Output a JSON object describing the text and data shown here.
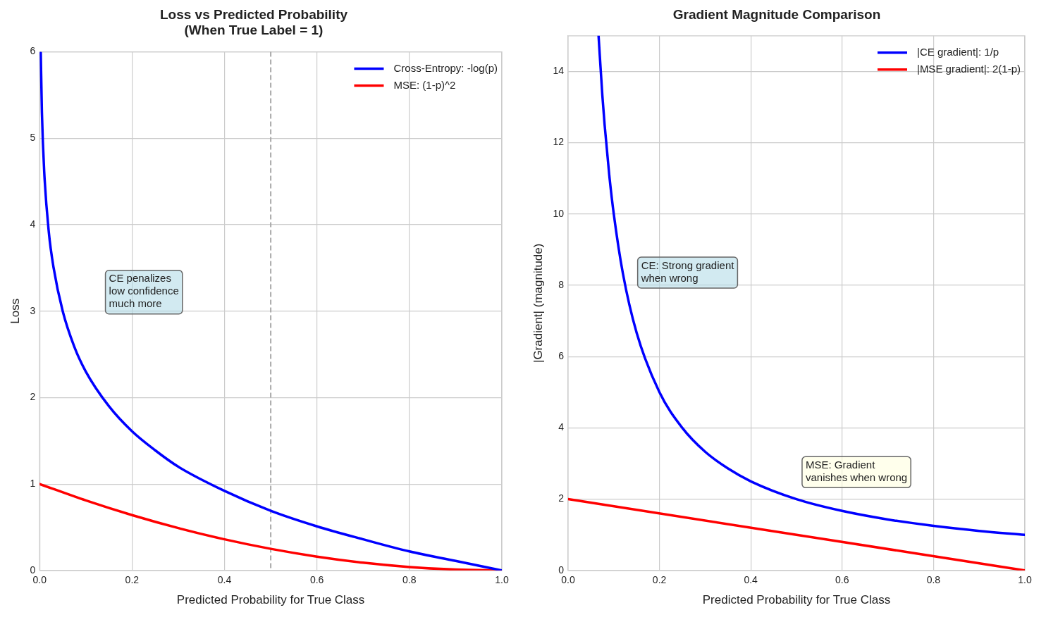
{
  "chart_data": [
    {
      "type": "line",
      "title": "Loss vs Predicted Probability\n(When True Label = 1)",
      "xlabel": "Predicted Probability for True Class",
      "ylabel": "Loss",
      "xlim": [
        0,
        1
      ],
      "xticks": [
        {
          "value": 0,
          "label": "0.0"
        },
        {
          "value": 0.2,
          "label": "0.2"
        },
        {
          "value": 0.4,
          "label": "0.4"
        },
        {
          "value": 0.6,
          "label": "0.6"
        },
        {
          "value": 0.8,
          "label": "0.8"
        },
        {
          "value": 1,
          "label": "1.0"
        }
      ],
      "ylim": [
        0,
        6
      ],
      "yticks": [
        0,
        1,
        2,
        3,
        4,
        5,
        6
      ],
      "grid": true,
      "legend": "top right",
      "marker": "none",
      "line_style": "solid",
      "series": [
        {
          "name": "Cross-Entropy: -log(p)",
          "color": "#0000ff",
          "x": [
            0.0025,
            0.005,
            0.01,
            0.02,
            0.03,
            0.05,
            0.075,
            0.1,
            0.15,
            0.2,
            0.25,
            0.3,
            0.4,
            0.5,
            0.6,
            0.7,
            0.8,
            0.9,
            1.0
          ],
          "values": [
            5.99,
            5.3,
            4.61,
            3.91,
            3.51,
            3.0,
            2.59,
            2.3,
            1.9,
            1.61,
            1.39,
            1.2,
            0.92,
            0.69,
            0.51,
            0.36,
            0.22,
            0.11,
            0
          ]
        },
        {
          "name": "MSE: (1-p)^2",
          "color": "#ff0000",
          "x": [
            0,
            0.1,
            0.2,
            0.3,
            0.4,
            0.5,
            0.6,
            0.7,
            0.8,
            0.9,
            1.0
          ],
          "values": [
            1,
            0.81,
            0.64,
            0.49,
            0.36,
            0.25,
            0.16,
            0.09,
            0.04,
            0.01,
            0
          ]
        }
      ],
      "ref_lines": [
        {
          "axis": "x",
          "value": 0.5,
          "color": "#aaaaaa",
          "line_style": "dashed"
        }
      ],
      "annotations": [
        "CE penalizes\nlow confidence\nmuch more"
      ]
    },
    {
      "type": "line",
      "title": "Gradient Magnitude Comparison",
      "xlabel": "Predicted Probability for True Class",
      "ylabel": "|Gradient| (magnitude)",
      "xlim": [
        0,
        1
      ],
      "xticks": [
        {
          "value": 0,
          "label": "0.0"
        },
        {
          "value": 0.2,
          "label": "0.2"
        },
        {
          "value": 0.4,
          "label": "0.4"
        },
        {
          "value": 0.6,
          "label": "0.6"
        },
        {
          "value": 0.8,
          "label": "0.8"
        },
        {
          "value": 1,
          "label": "1.0"
        }
      ],
      "ylim": [
        0,
        15
      ],
      "yticks": [
        0,
        2,
        4,
        6,
        8,
        10,
        12,
        14
      ],
      "grid": true,
      "legend": "top right",
      "marker": "none",
      "line_style": "solid",
      "series": [
        {
          "name": "|CE gradient|: 1/p",
          "color": "#0000ff",
          "x": [
            0.0667,
            0.075,
            0.08,
            0.09,
            0.1,
            0.12,
            0.15,
            0.2,
            0.25,
            0.3,
            0.35,
            0.4,
            0.5,
            0.6,
            0.7,
            0.8,
            0.9,
            1.0
          ],
          "values": [
            15,
            13.33,
            12.5,
            11.11,
            10,
            8.33,
            6.67,
            5,
            4,
            3.33,
            2.86,
            2.5,
            2,
            1.67,
            1.43,
            1.25,
            1.11,
            1
          ]
        },
        {
          "name": "|MSE gradient|: 2(1-p)",
          "color": "#ff0000",
          "x": [
            0,
            0.5,
            1
          ],
          "values": [
            2,
            1,
            0
          ]
        }
      ],
      "annotations": [
        "CE: Strong gradient\nwhen wrong",
        "MSE: Gradient\nvanishes when wrong"
      ]
    }
  ]
}
